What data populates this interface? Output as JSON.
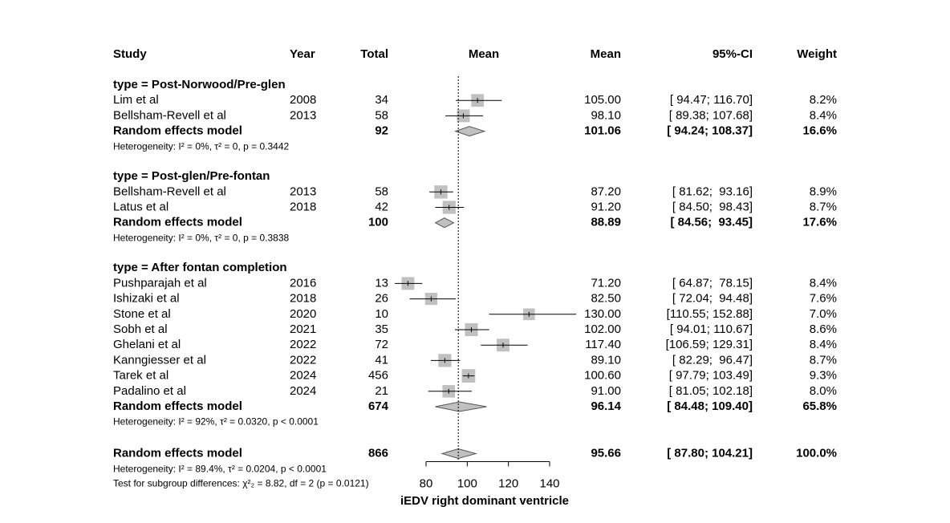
{
  "chart_data": {
    "type": "forest",
    "columns": {
      "study": "Study",
      "year": "Year",
      "total": "Total",
      "plot": "Mean",
      "mean": "Mean",
      "ci": "95%-CI",
      "weight": "Weight"
    },
    "xlabel": "iEDV right dominant ventricle",
    "xlim": [
      80,
      140
    ],
    "xticks": [
      80,
      100,
      120,
      140
    ],
    "square_color": "#c0c0c0",
    "diamond_color": "#c0c0c0",
    "groups": [
      {
        "title": "type = Post-Norwood/Pre-glen",
        "studies": [
          {
            "study": "Lim et al",
            "year": 2008,
            "total": 34,
            "mean": 105.0,
            "mean_label": "105.00",
            "ci_low": 94.47,
            "ci_high": 116.7,
            "ci_label": "[ 94.47; 116.70]",
            "weight": 8.2,
            "weight_label": "8.2%"
          },
          {
            "study": "Bellsham-Revell et al",
            "year": 2013,
            "total": 58,
            "mean": 98.1,
            "mean_label": "98.10",
            "ci_low": 89.38,
            "ci_high": 107.68,
            "ci_label": "[ 89.38; 107.68]",
            "weight": 8.4,
            "weight_label": "8.4%"
          }
        ],
        "random": {
          "label": "Random effects model",
          "total": 92,
          "mean": 101.06,
          "mean_label": "101.06",
          "ci_low": 94.24,
          "ci_high": 108.37,
          "ci_label": "[ 94.24; 108.37]",
          "weight": 16.6,
          "weight_label": "16.6%"
        },
        "heterogeneity": "Heterogeneity: I² = 0%, τ² = 0, p = 0.3442"
      },
      {
        "title": "type = Post-glen/Pre-fontan",
        "studies": [
          {
            "study": "Bellsham-Revell et al",
            "year": 2013,
            "total": 58,
            "mean": 87.2,
            "mean_label": "87.20",
            "ci_low": 81.62,
            "ci_high": 93.16,
            "ci_label": "[ 81.62;  93.16]",
            "weight": 8.9,
            "weight_label": "8.9%"
          },
          {
            "study": "Latus et al",
            "year": 2018,
            "total": 42,
            "mean": 91.2,
            "mean_label": "91.20",
            "ci_low": 84.5,
            "ci_high": 98.43,
            "ci_label": "[ 84.50;  98.43]",
            "weight": 8.7,
            "weight_label": "8.7%"
          }
        ],
        "random": {
          "label": "Random effects model",
          "total": 100,
          "mean": 88.89,
          "mean_label": "88.89",
          "ci_low": 84.56,
          "ci_high": 93.45,
          "ci_label": "[ 84.56;  93.45]",
          "weight": 17.6,
          "weight_label": "17.6%"
        },
        "heterogeneity": "Heterogeneity: I² = 0%, τ² = 0, p = 0.3838"
      },
      {
        "title": "type = After fontan completion",
        "studies": [
          {
            "study": "Pushparajah et al",
            "year": 2016,
            "total": 13,
            "mean": 71.2,
            "mean_label": "71.20",
            "ci_low": 64.87,
            "ci_high": 78.15,
            "ci_label": "[ 64.87;  78.15]",
            "weight": 8.4,
            "weight_label": "8.4%"
          },
          {
            "study": "Ishizaki et al",
            "year": 2018,
            "total": 26,
            "mean": 82.5,
            "mean_label": "82.50",
            "ci_low": 72.04,
            "ci_high": 94.48,
            "ci_label": "[ 72.04;  94.48]",
            "weight": 7.6,
            "weight_label": "7.6%"
          },
          {
            "study": "Stone et al",
            "year": 2020,
            "total": 10,
            "mean": 130.0,
            "mean_label": "130.00",
            "ci_low": 110.55,
            "ci_high": 152.88,
            "ci_label": "[110.55; 152.88]",
            "weight": 7.0,
            "weight_label": "7.0%"
          },
          {
            "study": "Sobh et al",
            "year": 2021,
            "total": 35,
            "mean": 102.0,
            "mean_label": "102.00",
            "ci_low": 94.01,
            "ci_high": 110.67,
            "ci_label": "[ 94.01; 110.67]",
            "weight": 8.6,
            "weight_label": "8.6%"
          },
          {
            "study": "Ghelani et al",
            "year": 2022,
            "total": 72,
            "mean": 117.4,
            "mean_label": "117.40",
            "ci_low": 106.59,
            "ci_high": 129.31,
            "ci_label": "[106.59; 129.31]",
            "weight": 8.4,
            "weight_label": "8.4%"
          },
          {
            "study": "Kanngiesser et al",
            "year": 2022,
            "total": 41,
            "mean": 89.1,
            "mean_label": "89.10",
            "ci_low": 82.29,
            "ci_high": 96.47,
            "ci_label": "[ 82.29;  96.47]",
            "weight": 8.7,
            "weight_label": "8.7%"
          },
          {
            "study": "Tarek et al",
            "year": 2024,
            "total": 456,
            "mean": 100.6,
            "mean_label": "100.60",
            "ci_low": 97.79,
            "ci_high": 103.49,
            "ci_label": "[ 97.79; 103.49]",
            "weight": 9.3,
            "weight_label": "9.3%"
          },
          {
            "study": "Padalino et al",
            "year": 2024,
            "total": 21,
            "mean": 91.0,
            "mean_label": "91.00",
            "ci_low": 81.05,
            "ci_high": 102.18,
            "ci_label": "[ 81.05; 102.18]",
            "weight": 8.0,
            "weight_label": "8.0%"
          }
        ],
        "random": {
          "label": "Random effects model",
          "total": 674,
          "mean": 96.14,
          "mean_label": "96.14",
          "ci_low": 84.48,
          "ci_high": 109.4,
          "ci_label": "[ 84.48; 109.40]",
          "weight": 65.8,
          "weight_label": "65.8%"
        },
        "heterogeneity": "Heterogeneity: I² = 92%, τ² = 0.0320, p < 0.0001"
      }
    ],
    "overall": {
      "label": "Random effects model",
      "total": 866,
      "mean": 95.66,
      "mean_label": "95.66",
      "ci_low": 87.8,
      "ci_high": 104.21,
      "ci_label": "[ 87.80; 104.21]",
      "weight": 100.0,
      "weight_label": "100.0%",
      "heterogeneity": "Heterogeneity: I² = 89.4%, τ² = 0.0204, p < 0.0001",
      "subgroup_test": "Test for subgroup differences: χ²₂ = 8.82, df = 2 (p = 0.0121)"
    }
  }
}
